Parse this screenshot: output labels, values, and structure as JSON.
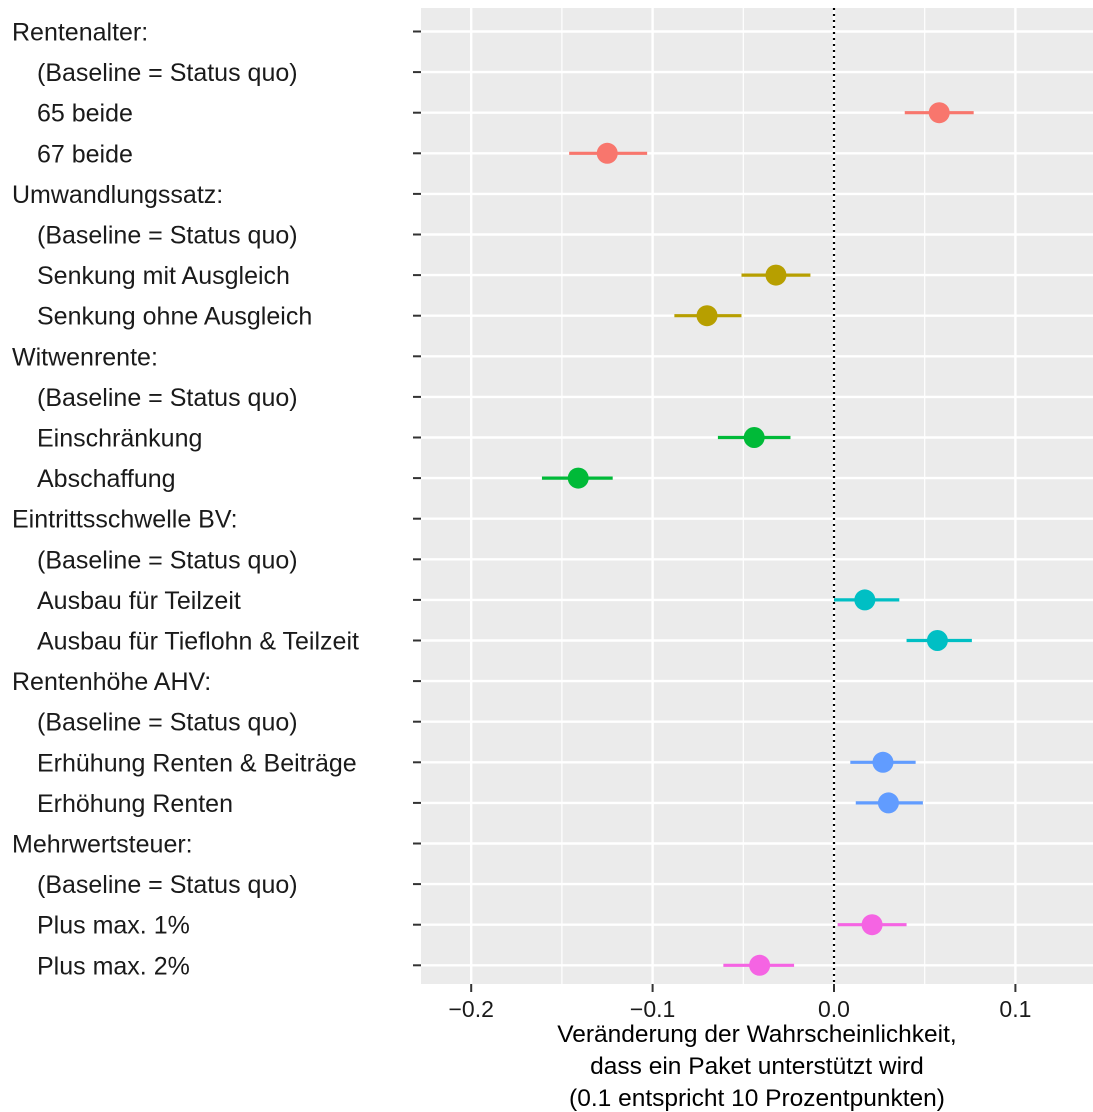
{
  "chart_data": {
    "type": "dot-errorbar",
    "xlabel_lines": [
      "Veränderung der Wahrscheinlichkeit,",
      "dass ein Paket unterstützt wird",
      "(0.1 entspricht 10 Prozentpunkten)"
    ],
    "xlim": [
      -0.225,
      0.143
    ],
    "xticks": [
      -0.2,
      -0.1,
      0.0,
      0.1
    ],
    "xtick_labels": [
      "−0.2",
      "−0.1",
      "0.0",
      "0.1"
    ],
    "reference_line": 0.0,
    "grid": true,
    "rows": [
      {
        "label": "Rentenalter:",
        "indent": false,
        "group": null
      },
      {
        "label": "(Baseline = Status quo)",
        "indent": true,
        "group": null
      },
      {
        "label": "65 beide",
        "indent": true,
        "group": "Rentenalter",
        "estimate": 0.058,
        "lower": 0.039,
        "upper": 0.077
      },
      {
        "label": "67 beide",
        "indent": true,
        "group": "Rentenalter",
        "estimate": -0.125,
        "lower": -0.146,
        "upper": -0.103
      },
      {
        "label": "Umwandlungssatz:",
        "indent": false,
        "group": null
      },
      {
        "label": "(Baseline = Status quo)",
        "indent": true,
        "group": null
      },
      {
        "label": "Senkung mit Ausgleich",
        "indent": true,
        "group": "Umwandlungssatz",
        "estimate": -0.032,
        "lower": -0.051,
        "upper": -0.013
      },
      {
        "label": "Senkung ohne Ausgleich",
        "indent": true,
        "group": "Umwandlungssatz",
        "estimate": -0.07,
        "lower": -0.088,
        "upper": -0.051
      },
      {
        "label": "Witwenrente:",
        "indent": false,
        "group": null
      },
      {
        "label": "(Baseline = Status quo)",
        "indent": true,
        "group": null
      },
      {
        "label": "Einschränkung",
        "indent": true,
        "group": "Witwenrente",
        "estimate": -0.044,
        "lower": -0.064,
        "upper": -0.024
      },
      {
        "label": "Abschaffung",
        "indent": true,
        "group": "Witwenrente",
        "estimate": -0.141,
        "lower": -0.161,
        "upper": -0.122
      },
      {
        "label": "Eintrittsschwelle BV:",
        "indent": false,
        "group": null
      },
      {
        "label": "(Baseline = Status quo)",
        "indent": true,
        "group": null
      },
      {
        "label": "Ausbau für Teilzeit",
        "indent": true,
        "group": "Eintrittsschwelle BV",
        "estimate": 0.017,
        "lower": 0.0,
        "upper": 0.036
      },
      {
        "label": "Ausbau für Tieflohn & Teilzeit",
        "indent": true,
        "group": "Eintrittsschwelle BV",
        "estimate": 0.057,
        "lower": 0.04,
        "upper": 0.076
      },
      {
        "label": "Rentenhöhe AHV:",
        "indent": false,
        "group": null
      },
      {
        "label": "(Baseline = Status quo)",
        "indent": true,
        "group": null
      },
      {
        "label": "Erhühung Renten & Beiträge",
        "indent": true,
        "group": "Rentenhöhe AHV",
        "estimate": 0.027,
        "lower": 0.009,
        "upper": 0.045
      },
      {
        "label": "Erhöhung Renten",
        "indent": true,
        "group": "Rentenhöhe AHV",
        "estimate": 0.03,
        "lower": 0.012,
        "upper": 0.049
      },
      {
        "label": "Mehrwertsteuer:",
        "indent": false,
        "group": null
      },
      {
        "label": "(Baseline = Status quo)",
        "indent": true,
        "group": null
      },
      {
        "label": "Plus max. 1%",
        "indent": true,
        "group": "Mehrwertsteuer",
        "estimate": 0.021,
        "lower": 0.002,
        "upper": 0.04
      },
      {
        "label": "Plus max. 2%",
        "indent": true,
        "group": "Mehrwertsteuer",
        "estimate": -0.041,
        "lower": -0.061,
        "upper": -0.022
      }
    ],
    "group_colors": {
      "Rentenalter": "#F8766D",
      "Umwandlungssatz": "#B79F00",
      "Witwenrente": "#00BA38",
      "Eintrittsschwelle BV": "#00BFC4",
      "Rentenhöhe AHV": "#619CFF",
      "Mehrwertsteuer": "#F564E3"
    },
    "panel_background": "#EBEBEB",
    "gridline_color": "#FFFFFF"
  }
}
